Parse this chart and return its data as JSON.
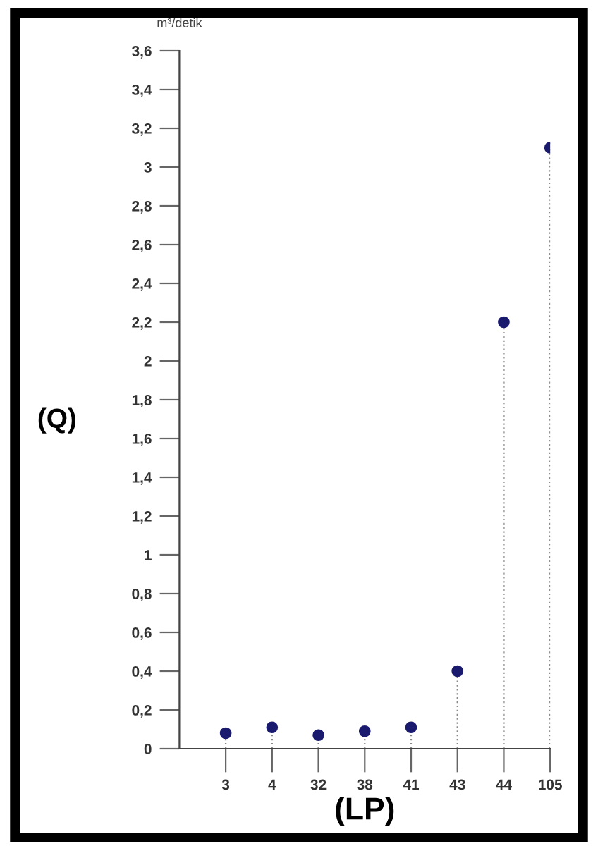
{
  "chart_data": {
    "type": "lollipop",
    "categories": [
      "3",
      "4",
      "32",
      "38",
      "41",
      "43",
      "44",
      "105"
    ],
    "values": [
      0.08,
      0.11,
      0.07,
      0.09,
      0.11,
      0.4,
      2.2,
      3.1
    ],
    "color": "#1a1a6e",
    "line_style": "dotted",
    "marker": "circle",
    "xlabel": "(LP)",
    "ylabel": "(Q)",
    "annotations": [
      "m³/detik"
    ],
    "ylim": [
      0,
      3.6
    ],
    "yticks": [
      {
        "value": 0,
        "label": "0"
      },
      {
        "value": 0.2,
        "label": "0,2"
      },
      {
        "value": 0.4,
        "label": "0,4"
      },
      {
        "value": 0.6,
        "label": "0,6"
      },
      {
        "value": 0.8,
        "label": "0,8"
      },
      {
        "value": 1,
        "label": "1"
      },
      {
        "value": 1.2,
        "label": "1,2"
      },
      {
        "value": 1.4,
        "label": "1,4"
      },
      {
        "value": 1.6,
        "label": "1,6"
      },
      {
        "value": 1.8,
        "label": "1,8"
      },
      {
        "value": 2,
        "label": "2"
      },
      {
        "value": 2.2,
        "label": "2,2"
      },
      {
        "value": 2.4,
        "label": "2,4"
      },
      {
        "value": 2.6,
        "label": "2,6"
      },
      {
        "value": 2.8,
        "label": "2,8"
      },
      {
        "value": 3,
        "label": "3"
      },
      {
        "value": 3.2,
        "label": "3,2"
      },
      {
        "value": 3.4,
        "label": "3,4"
      },
      {
        "value": 3.6,
        "label": "3,6"
      }
    ],
    "grid": false,
    "legend": false
  }
}
